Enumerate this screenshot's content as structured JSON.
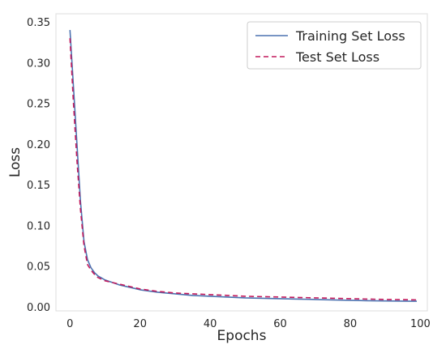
{
  "chart_data": {
    "type": "line",
    "xlabel": "Epochs",
    "ylabel": "Loss",
    "xlim": [
      -4,
      102
    ],
    "ylim": [
      -0.005,
      0.36
    ],
    "xticks": [
      0,
      20,
      40,
      60,
      80,
      100
    ],
    "xtick_labels": [
      "0",
      "20",
      "40",
      "60",
      "80",
      "100"
    ],
    "yticks": [
      0.0,
      0.05,
      0.1,
      0.15,
      0.2,
      0.25,
      0.3,
      0.35
    ],
    "ytick_labels": [
      "0.00",
      "0.05",
      "0.10",
      "0.15",
      "0.20",
      "0.25",
      "0.30",
      "0.35"
    ],
    "grid": false,
    "legend_position": "top-right",
    "series": [
      {
        "name": "Training Set Loss",
        "color": "#4c72b0",
        "style": "solid",
        "x": [
          0,
          1,
          2,
          3,
          4,
          5,
          6,
          7,
          8,
          10,
          12,
          14,
          16,
          18,
          20,
          25,
          30,
          35,
          40,
          45,
          50,
          55,
          60,
          65,
          70,
          75,
          80,
          85,
          90,
          95,
          99
        ],
        "y": [
          0.34,
          0.27,
          0.2,
          0.13,
          0.08,
          0.058,
          0.048,
          0.042,
          0.038,
          0.033,
          0.03,
          0.027,
          0.025,
          0.023,
          0.021,
          0.018,
          0.016,
          0.014,
          0.013,
          0.012,
          0.011,
          0.0105,
          0.01,
          0.0095,
          0.009,
          0.0085,
          0.008,
          0.0075,
          0.0072,
          0.007,
          0.0068
        ]
      },
      {
        "name": "Test Set Loss",
        "color": "#c2185b",
        "style": "dashed",
        "x": [
          0,
          1,
          2,
          3,
          4,
          5,
          6,
          7,
          8,
          10,
          12,
          14,
          16,
          18,
          20,
          25,
          30,
          35,
          40,
          45,
          50,
          55,
          60,
          65,
          70,
          75,
          80,
          85,
          90,
          95,
          99
        ],
        "y": [
          0.33,
          0.25,
          0.18,
          0.12,
          0.075,
          0.052,
          0.045,
          0.04,
          0.036,
          0.032,
          0.03,
          0.028,
          0.026,
          0.024,
          0.022,
          0.019,
          0.017,
          0.016,
          0.015,
          0.014,
          0.013,
          0.0125,
          0.012,
          0.0115,
          0.011,
          0.0105,
          0.01,
          0.0095,
          0.009,
          0.0088,
          0.0085
        ]
      }
    ]
  }
}
